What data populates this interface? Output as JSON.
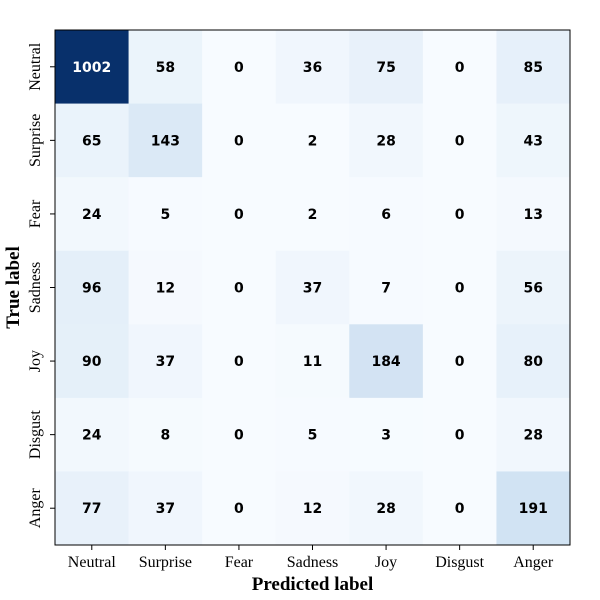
{
  "chart_data": {
    "type": "heatmap",
    "title": "",
    "xlabel": "Predicted label",
    "ylabel": "True label",
    "x_categories": [
      "Neutral",
      "Surprise",
      "Fear",
      "Sadness",
      "Joy",
      "Disgust",
      "Anger"
    ],
    "y_categories": [
      "Neutral",
      "Surprise",
      "Fear",
      "Sadness",
      "Joy",
      "Disgust",
      "Anger"
    ],
    "values": [
      [
        1002,
        58,
        0,
        36,
        75,
        0,
        85
      ],
      [
        65,
        143,
        0,
        2,
        28,
        0,
        43
      ],
      [
        24,
        5,
        0,
        2,
        6,
        0,
        13
      ],
      [
        96,
        12,
        0,
        37,
        7,
        0,
        56
      ],
      [
        90,
        37,
        0,
        11,
        184,
        0,
        80
      ],
      [
        24,
        8,
        0,
        5,
        3,
        0,
        28
      ],
      [
        77,
        37,
        0,
        12,
        28,
        0,
        191
      ]
    ],
    "colormap": "Blues",
    "vmin": 0,
    "vmax": 1002,
    "colors": {
      "low": "#f7fbff",
      "high": "#08306b",
      "text_dark": "#000000",
      "text_light": "#ffffff"
    },
    "grid": false,
    "legend": "none"
  }
}
